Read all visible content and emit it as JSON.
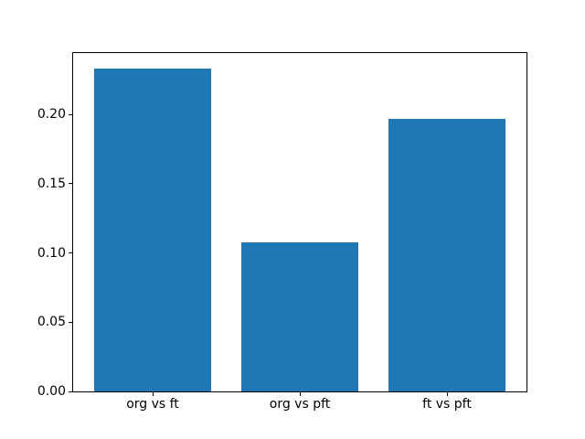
{
  "figure": {
    "background": "#ffffff"
  },
  "chart_data": {
    "type": "bar",
    "categories": [
      "org vs ft",
      "org vs pft",
      "ft vs pft"
    ],
    "values": [
      0.233,
      0.108,
      0.197
    ],
    "title": "",
    "xlabel": "",
    "ylabel": "",
    "ylim": [
      0,
      0.2444
    ],
    "yticks": [
      0,
      0.05,
      0.1,
      0.15,
      0.2
    ],
    "ytick_labels": [
      "0.00",
      "0.05",
      "0.10",
      "0.15",
      "0.20"
    ],
    "bar_color": "#1f77b4",
    "axis_color": "#000000",
    "background": "#ffffff",
    "grid": false,
    "legend": false,
    "bar_width_fraction": 0.8
  }
}
